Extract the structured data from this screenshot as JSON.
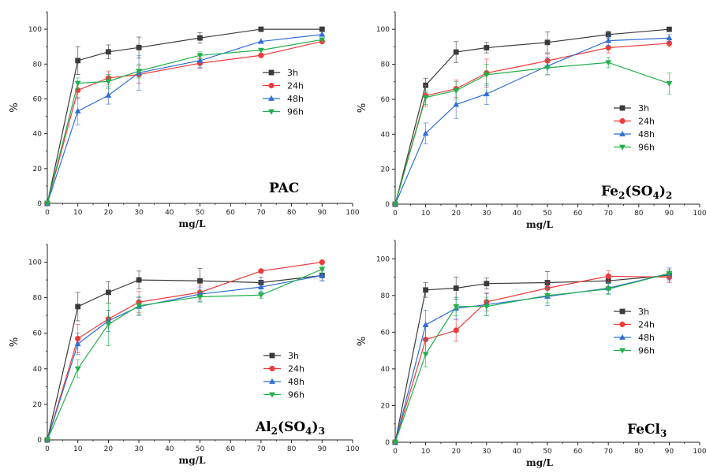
{
  "figure": {
    "layout": "2x2 grid"
  },
  "chart_data": [
    {
      "type": "line",
      "panel_label": "PAC",
      "xlabel": "mg/L",
      "ylabel": "%",
      "xlim": [
        0,
        100
      ],
      "ylim": [
        0,
        110
      ],
      "x_ticks": [
        "0",
        "10",
        "20",
        "30",
        "40",
        "50",
        "60",
        "70",
        "80",
        "90",
        "100"
      ],
      "y_ticks": [
        "0",
        "20",
        "40",
        "60",
        "80",
        "100"
      ],
      "x": [
        0,
        10,
        20,
        30,
        50,
        70,
        90
      ],
      "legend_position": "right-middle",
      "series": [
        {
          "name": "3h",
          "color": "#3a3a3a",
          "marker": "square",
          "values": [
            0,
            82,
            87,
            89.5,
            95,
            100,
            100
          ],
          "errors": [
            0,
            8,
            4,
            6,
            3,
            0,
            0
          ]
        },
        {
          "name": "24h",
          "color": "#ee3b3b",
          "marker": "circle",
          "values": [
            0,
            65,
            72,
            74,
            80.5,
            85,
            93
          ],
          "errors": [
            0,
            5,
            4,
            5,
            3,
            0,
            0
          ]
        },
        {
          "name": "48h",
          "color": "#2f6fd6",
          "marker": "triangle-up",
          "values": [
            0,
            53,
            62,
            75,
            82,
            93,
            97
          ],
          "errors": [
            0,
            8,
            5,
            10,
            4,
            0,
            0
          ]
        },
        {
          "name": "96h",
          "color": "#22b04a",
          "marker": "triangle-down",
          "values": [
            0,
            69,
            70,
            76,
            85,
            88,
            94
          ],
          "errors": [
            0,
            3,
            4,
            4,
            2,
            0,
            0
          ]
        }
      ]
    },
    {
      "type": "line",
      "panel_label": "Fe2(SO4)2",
      "panel_label_parts": [
        [
          "Fe",
          ""
        ],
        [
          "2",
          "sub"
        ],
        [
          "(SO",
          ""
        ],
        [
          "4",
          "sub"
        ],
        [
          ")",
          ""
        ],
        [
          "2",
          "sub"
        ]
      ],
      "xlabel": "mg/L",
      "ylabel": "%",
      "xlim": [
        0,
        100
      ],
      "ylim": [
        0,
        110
      ],
      "x_ticks": [
        "0",
        "10",
        "20",
        "30",
        "40",
        "50",
        "60",
        "70",
        "80",
        "90",
        "100"
      ],
      "y_ticks": [
        "0",
        "20",
        "40",
        "60",
        "80",
        "100"
      ],
      "x": [
        0,
        10,
        20,
        30,
        50,
        70,
        90
      ],
      "legend_position": "right-middle",
      "series": [
        {
          "name": "3h",
          "color": "#3a3a3a",
          "marker": "square",
          "values": [
            0,
            68,
            87,
            89.5,
            92.5,
            97,
            100
          ],
          "errors": [
            0,
            4,
            6,
            3,
            6,
            2,
            0
          ]
        },
        {
          "name": "24h",
          "color": "#ee3b3b",
          "marker": "circle",
          "values": [
            0,
            62,
            66,
            75,
            82,
            89.5,
            92
          ],
          "errors": [
            0,
            6,
            5,
            8,
            4,
            3,
            2
          ]
        },
        {
          "name": "48h",
          "color": "#2f6fd6",
          "marker": "triangle-up",
          "values": [
            0,
            40.5,
            57,
            63,
            79,
            93.5,
            95
          ],
          "errors": [
            0,
            6,
            8,
            6,
            5,
            3,
            2
          ]
        },
        {
          "name": "96h",
          "color": "#22b04a",
          "marker": "triangle-down",
          "values": [
            0,
            61,
            65,
            74,
            78,
            81,
            69
          ],
          "errors": [
            0,
            4,
            5,
            6,
            4,
            3,
            6
          ]
        }
      ]
    },
    {
      "type": "line",
      "panel_label": "Al2(SO4)3",
      "panel_label_parts": [
        [
          "Al",
          ""
        ],
        [
          "2",
          "sub"
        ],
        [
          "(SO",
          ""
        ],
        [
          "4",
          "sub"
        ],
        [
          ")",
          ""
        ],
        [
          "3",
          "sub"
        ]
      ],
      "xlabel": "mg/L",
      "ylabel": "%",
      "xlim": [
        0,
        100
      ],
      "ylim": [
        0,
        110
      ],
      "x_ticks": [
        "0",
        "10",
        "20",
        "30",
        "40",
        "50",
        "60",
        "70",
        "80",
        "90",
        "100"
      ],
      "y_ticks": [
        "0",
        "20",
        "40",
        "60",
        "80",
        "100"
      ],
      "x": [
        0,
        10,
        20,
        30,
        50,
        70,
        90
      ],
      "legend_position": "right-middle",
      "series": [
        {
          "name": "3h",
          "color": "#3a3a3a",
          "marker": "square",
          "values": [
            0,
            75,
            83,
            90,
            89.5,
            88.5,
            92.5
          ],
          "errors": [
            0,
            8,
            6,
            5,
            7,
            3,
            3
          ]
        },
        {
          "name": "24h",
          "color": "#ee3b3b",
          "marker": "circle",
          "values": [
            0,
            57,
            68,
            77.5,
            83,
            95,
            100
          ],
          "errors": [
            0,
            8,
            5,
            6,
            4,
            0,
            0
          ]
        },
        {
          "name": "48h",
          "color": "#2f6fd6",
          "marker": "triangle-up",
          "values": [
            0,
            54,
            67,
            75,
            82,
            86,
            92.5
          ],
          "errors": [
            0,
            6,
            6,
            5,
            4,
            3,
            3
          ]
        },
        {
          "name": "96h",
          "color": "#22b04a",
          "marker": "triangle-down",
          "values": [
            0,
            40,
            65,
            75.5,
            80.5,
            81.5,
            96
          ],
          "errors": [
            0,
            5,
            12,
            5,
            3,
            2,
            2
          ]
        }
      ]
    },
    {
      "type": "line",
      "panel_label": "FeCl3",
      "panel_label_parts": [
        [
          "FeCl",
          ""
        ],
        [
          "3",
          "sub"
        ]
      ],
      "xlabel": "mg/L",
      "ylabel": "%",
      "xlim": [
        0,
        100
      ],
      "ylim": [
        0,
        110
      ],
      "x_ticks": [
        "0",
        "10",
        "20",
        "30",
        "40",
        "50",
        "60",
        "70",
        "80",
        "90",
        "100"
      ],
      "y_ticks": [
        "0",
        "20",
        "40",
        "60",
        "80",
        "100"
      ],
      "x": [
        0,
        10,
        20,
        30,
        50,
        70,
        90
      ],
      "legend_position": "right-middle",
      "series": [
        {
          "name": "3h",
          "color": "#3a3a3a",
          "marker": "square",
          "values": [
            0,
            83,
            84,
            86.5,
            87,
            88,
            91
          ],
          "errors": [
            0,
            4,
            6,
            3,
            6,
            3,
            3
          ]
        },
        {
          "name": "24h",
          "color": "#ee3b3b",
          "marker": "circle",
          "values": [
            0,
            56,
            61,
            76.5,
            84,
            90.5,
            90
          ],
          "errors": [
            0,
            8,
            6,
            5,
            3,
            3,
            3
          ]
        },
        {
          "name": "48h",
          "color": "#2f6fd6",
          "marker": "triangle-up",
          "values": [
            0,
            64,
            73,
            75,
            79.5,
            84,
            92
          ],
          "errors": [
            0,
            8,
            6,
            6,
            5,
            3,
            3
          ]
        },
        {
          "name": "96h",
          "color": "#22b04a",
          "marker": "triangle-down",
          "values": [
            0,
            48,
            74,
            74,
            80,
            83.5,
            92
          ],
          "errors": [
            0,
            7,
            5,
            5,
            4,
            3,
            2
          ]
        }
      ]
    }
  ]
}
